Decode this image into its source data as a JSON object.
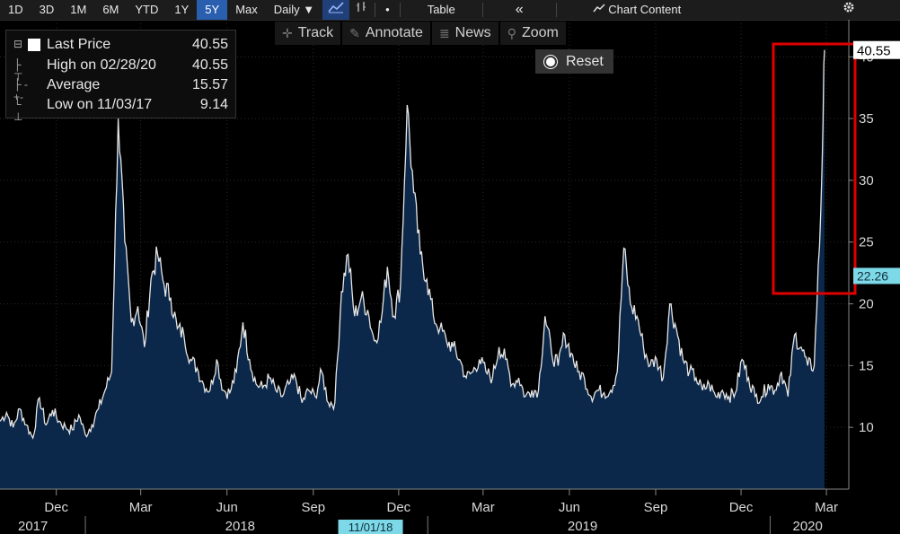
{
  "toolbar": {
    "items": [
      "1D",
      "3D",
      "1M",
      "6M",
      "YTD",
      "1Y",
      "5Y",
      "Max"
    ],
    "active": "5Y",
    "frequency": "Daily ▼",
    "table_label": "Table",
    "collapse_label": "«",
    "chart_content_label": "Chart Content",
    "settings_icon": "gear-icon"
  },
  "subbar": {
    "track": "Track",
    "annotate": "Annotate",
    "news": "News",
    "zoom": "Zoom",
    "reset": "Reset"
  },
  "legend": {
    "rows": [
      {
        "label": "Last Price",
        "value": "40.55"
      },
      {
        "label": "High on 02/28/20",
        "value": "40.55"
      },
      {
        "label": "Average",
        "value": "15.57"
      },
      {
        "label": "Low on 11/03/17",
        "value": "9.14"
      }
    ]
  },
  "chart_data": {
    "type": "area",
    "x_tick_labels": [
      "Dec",
      "Mar",
      "Jun",
      "Sep",
      "Dec",
      "Mar",
      "Jun",
      "Sep",
      "Dec",
      "Mar"
    ],
    "year_labels": [
      "2017",
      "2018",
      "2019",
      "2020"
    ],
    "crosshair_date": "11/01/18",
    "y_ticks": [
      10,
      15,
      20,
      25,
      30,
      35,
      40
    ],
    "ylim": [
      5,
      43
    ],
    "last_price_label": "40.55",
    "secondary_price_label": "22.26",
    "highlight_color": "#e00000",
    "fill_color": "#0b2749",
    "line_color": "#e6e6e6",
    "x": [
      "2017-10-02",
      "2017-10-09",
      "2017-10-16",
      "2017-10-23",
      "2017-10-30",
      "2017-11-06",
      "2017-11-13",
      "2017-11-20",
      "2017-11-27",
      "2017-12-04",
      "2017-12-11",
      "2017-12-18",
      "2017-12-25",
      "2018-01-01",
      "2018-01-08",
      "2018-01-15",
      "2018-01-22",
      "2018-01-29",
      "2018-02-05",
      "2018-02-12",
      "2018-02-19",
      "2018-02-26",
      "2018-03-05",
      "2018-03-12",
      "2018-03-19",
      "2018-03-26",
      "2018-04-02",
      "2018-04-09",
      "2018-04-16",
      "2018-04-23",
      "2018-04-30",
      "2018-05-07",
      "2018-05-14",
      "2018-05-21",
      "2018-05-28",
      "2018-06-04",
      "2018-06-11",
      "2018-06-18",
      "2018-06-25",
      "2018-07-02",
      "2018-07-09",
      "2018-07-16",
      "2018-07-23",
      "2018-07-30",
      "2018-08-06",
      "2018-08-13",
      "2018-08-20",
      "2018-08-27",
      "2018-09-03",
      "2018-09-10",
      "2018-09-17",
      "2018-09-24",
      "2018-10-01",
      "2018-10-08",
      "2018-10-15",
      "2018-10-22",
      "2018-10-29",
      "2018-11-05",
      "2018-11-12",
      "2018-11-19",
      "2018-11-26",
      "2018-12-03",
      "2018-12-10",
      "2018-12-17",
      "2018-12-24",
      "2018-12-31",
      "2019-01-07",
      "2019-01-14",
      "2019-01-21",
      "2019-01-28",
      "2019-02-04",
      "2019-02-11",
      "2019-02-18",
      "2019-02-25",
      "2019-03-04",
      "2019-03-11",
      "2019-03-18",
      "2019-03-25",
      "2019-04-01",
      "2019-04-08",
      "2019-04-15",
      "2019-04-22",
      "2019-04-29",
      "2019-05-06",
      "2019-05-13",
      "2019-05-20",
      "2019-05-27",
      "2019-06-03",
      "2019-06-10",
      "2019-06-17",
      "2019-06-24",
      "2019-07-01",
      "2019-07-08",
      "2019-07-15",
      "2019-07-22",
      "2019-07-29",
      "2019-08-05",
      "2019-08-12",
      "2019-08-19",
      "2019-08-26",
      "2019-09-02",
      "2019-09-09",
      "2019-09-16",
      "2019-09-23",
      "2019-09-30",
      "2019-10-07",
      "2019-10-14",
      "2019-10-21",
      "2019-10-28",
      "2019-11-04",
      "2019-11-11",
      "2019-11-18",
      "2019-11-25",
      "2019-12-02",
      "2019-12-09",
      "2019-12-16",
      "2019-12-23",
      "2019-12-30",
      "2020-01-06",
      "2020-01-13",
      "2020-01-20",
      "2020-01-27",
      "2020-02-03",
      "2020-02-10",
      "2020-02-17",
      "2020-02-24",
      "2020-02-28"
    ],
    "values": [
      10.5,
      11.2,
      10.0,
      11.5,
      10.2,
      9.14,
      12.4,
      10.2,
      11.4,
      10.5,
      10.0,
      9.8,
      11.0,
      9.4,
      10.2,
      11.5,
      13.0,
      14.5,
      35.0,
      25.0,
      18.5,
      19.8,
      16.5,
      22.0,
      24.0,
      21.5,
      20.5,
      18.0,
      17.5,
      15.5,
      14.8,
      13.5,
      13.0,
      15.5,
      13.0,
      12.8,
      14.5,
      18.5,
      15.5,
      13.5,
      13.2,
      14.0,
      13.0,
      12.5,
      13.5,
      14.0,
      12.0,
      13.0,
      12.5,
      14.5,
      12.0,
      12.0,
      21.0,
      24.0,
      19.0,
      20.5,
      19.5,
      17.0,
      18.5,
      23.0,
      19.0,
      21.5,
      36.1,
      29.0,
      24.0,
      22.0,
      19.0,
      18.0,
      17.0,
      16.5,
      15.5,
      14.0,
      14.5,
      15.5,
      14.5,
      14.0,
      16.5,
      15.5,
      13.5,
      14.0,
      12.5,
      13.0,
      13.0,
      19.0,
      16.0,
      15.0,
      17.5,
      16.0,
      14.5,
      14.0,
      12.5,
      13.0,
      12.8,
      13.0,
      14.5,
      24.5,
      20.0,
      19.0,
      16.5,
      15.0,
      15.5,
      14.0,
      20.0,
      18.0,
      15.5,
      14.5,
      14.0,
      13.0,
      13.5,
      12.5,
      13.0,
      12.5,
      12.8,
      15.5,
      14.0,
      12.5,
      12.5,
      13.5,
      13.0,
      14.5,
      12.5,
      17.5,
      16.5,
      15.0,
      15.0,
      27.5,
      40.55
    ]
  }
}
